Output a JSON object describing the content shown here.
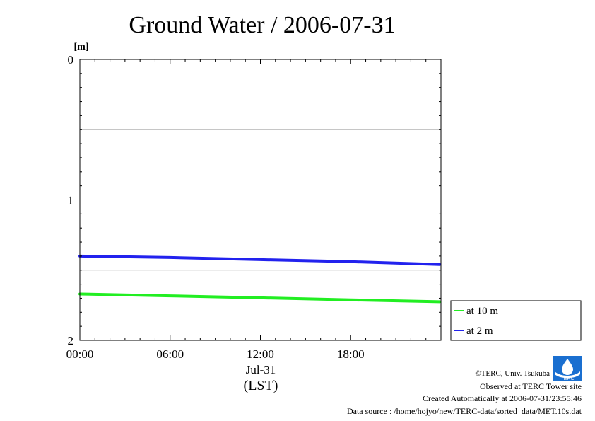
{
  "chart_data": {
    "type": "line",
    "title": "Ground Water / 2006-07-31",
    "ylabel": "[m]",
    "xlabel": "(LST)",
    "ylim": [
      2,
      0
    ],
    "y_ticks": [
      "0",
      "1",
      "2"
    ],
    "y_gridlines": [
      0.5,
      1,
      1.5
    ],
    "x_ticks": [
      {
        "label": "00:00",
        "hour": 0
      },
      {
        "label": "06:00",
        "hour": 6
      },
      {
        "label": "12:00",
        "hour": 12
      },
      {
        "label": "18:00",
        "hour": 18
      }
    ],
    "date_label": "Jul-31",
    "x_range_hours": [
      0,
      24
    ],
    "legend_position": "bottom-right-outside",
    "series": [
      {
        "name": "at 10 m",
        "color": "#22ee22",
        "points": [
          {
            "hour": 0,
            "value": 1.67
          },
          {
            "hour": 6,
            "value": 1.683
          },
          {
            "hour": 12,
            "value": 1.697
          },
          {
            "hour": 18,
            "value": 1.712
          },
          {
            "hour": 23.9,
            "value": 1.725
          }
        ]
      },
      {
        "name": "at 2 m",
        "color": "#2222ee",
        "points": [
          {
            "hour": 0,
            "value": 1.4
          },
          {
            "hour": 6,
            "value": 1.41
          },
          {
            "hour": 12,
            "value": 1.425
          },
          {
            "hour": 18,
            "value": 1.44
          },
          {
            "hour": 23.9,
            "value": 1.46
          }
        ]
      }
    ]
  },
  "credits": {
    "copyright": "©TERC, Univ. Tsukuba",
    "observed": "Observed at TERC Tower site",
    "created": "Created Automatically at 2006-07-31/23:55:46",
    "source": "Data source : /home/hojyo/new/TERC-data/sorted_data/MET.10s.dat"
  },
  "logo": {
    "text": "TERC",
    "color": "#1a6fd0"
  }
}
